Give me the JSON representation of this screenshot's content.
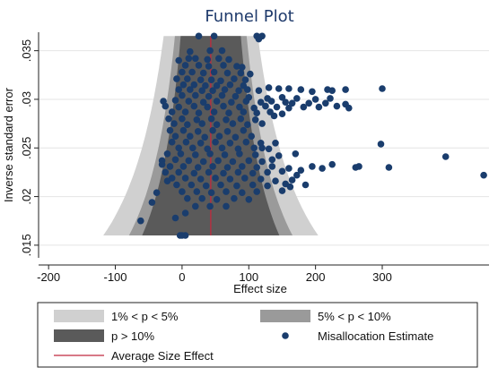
{
  "chart_data": {
    "type": "scatter",
    "title": "Funnel Plot",
    "xlabel": "Effect size",
    "ylabel": "Inverse standard error",
    "xlim": [
      -215,
      460
    ],
    "ylim": [
      0.0137,
      0.0369
    ],
    "xticks": [
      -200,
      -100,
      0,
      100,
      200,
      300
    ],
    "xtick_labels": [
      "-200",
      "-100",
      "0",
      "100",
      "200",
      "300"
    ],
    "yticks": [
      0.015,
      0.02,
      0.025,
      0.03,
      0.035
    ],
    "ytick_labels": [
      ".015",
      ".02",
      ".025",
      ".03",
      ".035"
    ],
    "grid": "horizontal",
    "background": "#ffffff",
    "average_effect": 43,
    "funnel_regions": [
      {
        "label": "1% < p < 5%",
        "color": "#d0d0d0",
        "halfwidth_coeff": 2.576
      },
      {
        "label": "5% < p < 10%",
        "color": "#9a9a9a",
        "halfwidth_coeff": 1.96
      },
      {
        "label": "p > 10%",
        "color": "#5a5a5a",
        "halfwidth_coeff": 1.645
      }
    ],
    "funnel_y_range": [
      0.016,
      0.0365
    ],
    "legend": {
      "position": "bottom",
      "items": [
        {
          "label": "1% < p < 5%",
          "kind": "band",
          "color": "#d0d0d0"
        },
        {
          "label": "5% < p < 10%",
          "kind": "band",
          "color": "#9a9a9a"
        },
        {
          "label": "p > 10%",
          "kind": "band",
          "color": "#5a5a5a"
        },
        {
          "label": "Misallocation Estimate",
          "kind": "marker",
          "color": "#1a3d6d"
        },
        {
          "label": "Average Size Effect",
          "kind": "line",
          "color": "#c0293e"
        }
      ]
    },
    "marker_color": "#1a3d6d",
    "line_color": "#c0293e",
    "series": [
      {
        "name": "Misallocation Estimate",
        "points": [
          [
            25,
            0.0365
          ],
          [
            48,
            0.0365
          ],
          [
            112,
            0.0365
          ],
          [
            120,
            0.0365
          ],
          [
            115,
            0.0362
          ],
          [
            42,
            0.035
          ],
          [
            60,
            0.035
          ],
          [
            12,
            0.0349
          ],
          [
            10,
            0.0342
          ],
          [
            20,
            0.0342
          ],
          [
            38,
            0.0341
          ],
          [
            55,
            0.0342
          ],
          [
            70,
            0.0341
          ],
          [
            -5,
            0.034
          ],
          [
            5,
            0.0335
          ],
          [
            25,
            0.0335
          ],
          [
            40,
            0.0334
          ],
          [
            62,
            0.0335
          ],
          [
            82,
            0.0334
          ],
          [
            90,
            0.0333
          ],
          [
            0,
            0.0328
          ],
          [
            15,
            0.0328
          ],
          [
            32,
            0.0327
          ],
          [
            48,
            0.0328
          ],
          [
            68,
            0.0327
          ],
          [
            88,
            0.0327
          ],
          [
            102,
            0.0326
          ],
          [
            -8,
            0.0321
          ],
          [
            8,
            0.0321
          ],
          [
            28,
            0.032
          ],
          [
            44,
            0.032
          ],
          [
            58,
            0.0319
          ],
          [
            78,
            0.0321
          ],
          [
            95,
            0.032
          ],
          [
            2,
            0.0315
          ],
          [
            18,
            0.0315
          ],
          [
            35,
            0.0314
          ],
          [
            52,
            0.0314
          ],
          [
            72,
            0.0315
          ],
          [
            92,
            0.0314
          ],
          [
            -5,
            0.031
          ],
          [
            12,
            0.031
          ],
          [
            30,
            0.0309
          ],
          [
            46,
            0.0309
          ],
          [
            64,
            0.031
          ],
          [
            85,
            0.0309
          ],
          [
            98,
            0.031
          ],
          [
            130,
            0.0312
          ],
          [
            145,
            0.0311
          ],
          [
            160,
            0.0311
          ],
          [
            178,
            0.031
          ],
          [
            195,
            0.0308
          ],
          [
            218,
            0.031
          ],
          [
            225,
            0.0309
          ],
          [
            245,
            0.031
          ],
          [
            300,
            0.0311
          ],
          [
            115,
            0.0309
          ],
          [
            0,
            0.0304
          ],
          [
            20,
            0.0304
          ],
          [
            40,
            0.0303
          ],
          [
            60,
            0.0304
          ],
          [
            80,
            0.0303
          ],
          [
            100,
            0.0302
          ],
          [
            128,
            0.0301
          ],
          [
            150,
            0.0302
          ],
          [
            172,
            0.0301
          ],
          [
            200,
            0.03
          ],
          [
            222,
            0.0301
          ],
          [
            -28,
            0.0298
          ],
          [
            -10,
            0.0299
          ],
          [
            10,
            0.0298
          ],
          [
            32,
            0.0297
          ],
          [
            52,
            0.0298
          ],
          [
            74,
            0.0297
          ],
          [
            96,
            0.0298
          ],
          [
            118,
            0.0297
          ],
          [
            134,
            0.0298
          ],
          [
            155,
            0.0297
          ],
          [
            165,
            0.0296
          ],
          [
            190,
            0.0296
          ],
          [
            215,
            0.0296
          ],
          [
            245,
            0.0295
          ],
          [
            -25,
            0.0293
          ],
          [
            -5,
            0.0292
          ],
          [
            18,
            0.0293
          ],
          [
            38,
            0.0292
          ],
          [
            62,
            0.0293
          ],
          [
            86,
            0.0292
          ],
          [
            108,
            0.0291
          ],
          [
            125,
            0.0293
          ],
          [
            142,
            0.0292
          ],
          [
            160,
            0.0291
          ],
          [
            182,
            0.0292
          ],
          [
            205,
            0.0292
          ],
          [
            232,
            0.0293
          ],
          [
            250,
            0.0291
          ],
          [
            -15,
            0.0287
          ],
          [
            5,
            0.0287
          ],
          [
            25,
            0.0286
          ],
          [
            48,
            0.0287
          ],
          [
            70,
            0.0286
          ],
          [
            92,
            0.0287
          ],
          [
            112,
            0.0286
          ],
          [
            132,
            0.0287
          ],
          [
            150,
            0.0285
          ],
          [
            -20,
            0.028
          ],
          [
            0,
            0.028
          ],
          [
            22,
            0.0279
          ],
          [
            44,
            0.028
          ],
          [
            66,
            0.0279
          ],
          [
            88,
            0.028
          ],
          [
            110,
            0.0279
          ],
          [
            -12,
            0.0275
          ],
          [
            8,
            0.0274
          ],
          [
            30,
            0.0275
          ],
          [
            52,
            0.0274
          ],
          [
            76,
            0.0275
          ],
          [
            98,
            0.0274
          ],
          [
            120,
            0.0275
          ],
          [
            -18,
            0.0268
          ],
          [
            2,
            0.0268
          ],
          [
            24,
            0.0267
          ],
          [
            46,
            0.0268
          ],
          [
            68,
            0.0267
          ],
          [
            92,
            0.0268
          ],
          [
            -10,
            0.0262
          ],
          [
            12,
            0.0262
          ],
          [
            34,
            0.0261
          ],
          [
            56,
            0.0262
          ],
          [
            80,
            0.0261
          ],
          [
            104,
            0.0262
          ],
          [
            -15,
            0.0256
          ],
          [
            6,
            0.0256
          ],
          [
            28,
            0.0255
          ],
          [
            50,
            0.0256
          ],
          [
            72,
            0.0255
          ],
          [
            96,
            0.0256
          ],
          [
            118,
            0.0255
          ],
          [
            140,
            0.0255
          ],
          [
            -5,
            0.025
          ],
          [
            16,
            0.025
          ],
          [
            38,
            0.0249
          ],
          [
            60,
            0.025
          ],
          [
            84,
            0.0249
          ],
          [
            108,
            0.025
          ],
          [
            130,
            0.0249
          ],
          [
            -22,
            0.0244
          ],
          [
            -2,
            0.0244
          ],
          [
            20,
            0.0243
          ],
          [
            42,
            0.0244
          ],
          [
            64,
            0.0243
          ],
          [
            86,
            0.0244
          ],
          [
            110,
            0.0243
          ],
          [
            145,
            0.0242
          ],
          [
            170,
            0.0244
          ],
          [
            -30,
            0.0237
          ],
          [
            -10,
            0.0238
          ],
          [
            10,
            0.0237
          ],
          [
            32,
            0.0236
          ],
          [
            54,
            0.0237
          ],
          [
            76,
            0.0236
          ],
          [
            100,
            0.0237
          ],
          [
            120,
            0.0236
          ],
          [
            -18,
            0.0231
          ],
          [
            2,
            0.0231
          ],
          [
            24,
            0.023
          ],
          [
            46,
            0.0231
          ],
          [
            68,
            0.023
          ],
          [
            90,
            0.0231
          ],
          [
            112,
            0.023
          ],
          [
            135,
            0.0231
          ],
          [
            160,
            0.0229
          ],
          [
            -25,
            0.0225
          ],
          [
            -5,
            0.0225
          ],
          [
            18,
            0.0224
          ],
          [
            40,
            0.0225
          ],
          [
            62,
            0.0224
          ],
          [
            84,
            0.0225
          ],
          [
            106,
            0.0224
          ],
          [
            128,
            0.0225
          ],
          [
            150,
            0.0226
          ],
          [
            178,
            0.0227
          ],
          [
            -15,
            0.0219
          ],
          [
            5,
            0.0219
          ],
          [
            28,
            0.0218
          ],
          [
            50,
            0.0219
          ],
          [
            72,
            0.0218
          ],
          [
            94,
            0.0219
          ],
          [
            118,
            0.0218
          ],
          [
            140,
            0.0216
          ],
          [
            165,
            0.0217
          ],
          [
            -8,
            0.0212
          ],
          [
            14,
            0.0212
          ],
          [
            36,
            0.0211
          ],
          [
            58,
            0.0212
          ],
          [
            82,
            0.0211
          ],
          [
            106,
            0.0212
          ],
          [
            128,
            0.0211
          ],
          [
            155,
            0.0213
          ],
          [
            0,
            0.0205
          ],
          [
            22,
            0.0205
          ],
          [
            44,
            0.0204
          ],
          [
            66,
            0.0205
          ],
          [
            90,
            0.0204
          ],
          [
            112,
            0.0205
          ],
          [
            8,
            0.0198
          ],
          [
            30,
            0.0198
          ],
          [
            52,
            0.0197
          ],
          [
            78,
            0.0198
          ],
          [
            100,
            0.0197
          ],
          [
            20,
            0.019
          ],
          [
            42,
            0.019
          ],
          [
            66,
            0.019
          ],
          [
            5,
            0.0183
          ],
          [
            -10,
            0.0178
          ],
          [
            0,
            0.016
          ],
          [
            5,
            0.016
          ],
          [
            -3,
            0.016
          ],
          [
            -62,
            0.0175
          ],
          [
            -45,
            0.0194
          ],
          [
            -38,
            0.0204
          ],
          [
            -22,
            0.0216
          ],
          [
            -30,
            0.0233
          ],
          [
            138,
            0.0283
          ],
          [
            120,
            0.025
          ],
          [
            135,
            0.0238
          ],
          [
            150,
            0.0206
          ],
          [
            162,
            0.021
          ],
          [
            172,
            0.0222
          ],
          [
            185,
            0.0212
          ],
          [
            195,
            0.0231
          ],
          [
            210,
            0.0229
          ],
          [
            225,
            0.0233
          ],
          [
            260,
            0.023
          ],
          [
            265,
            0.0231
          ],
          [
            298,
            0.0254
          ],
          [
            310,
            0.023
          ],
          [
            395,
            0.0241
          ],
          [
            452,
            0.0222
          ]
        ]
      }
    ]
  }
}
